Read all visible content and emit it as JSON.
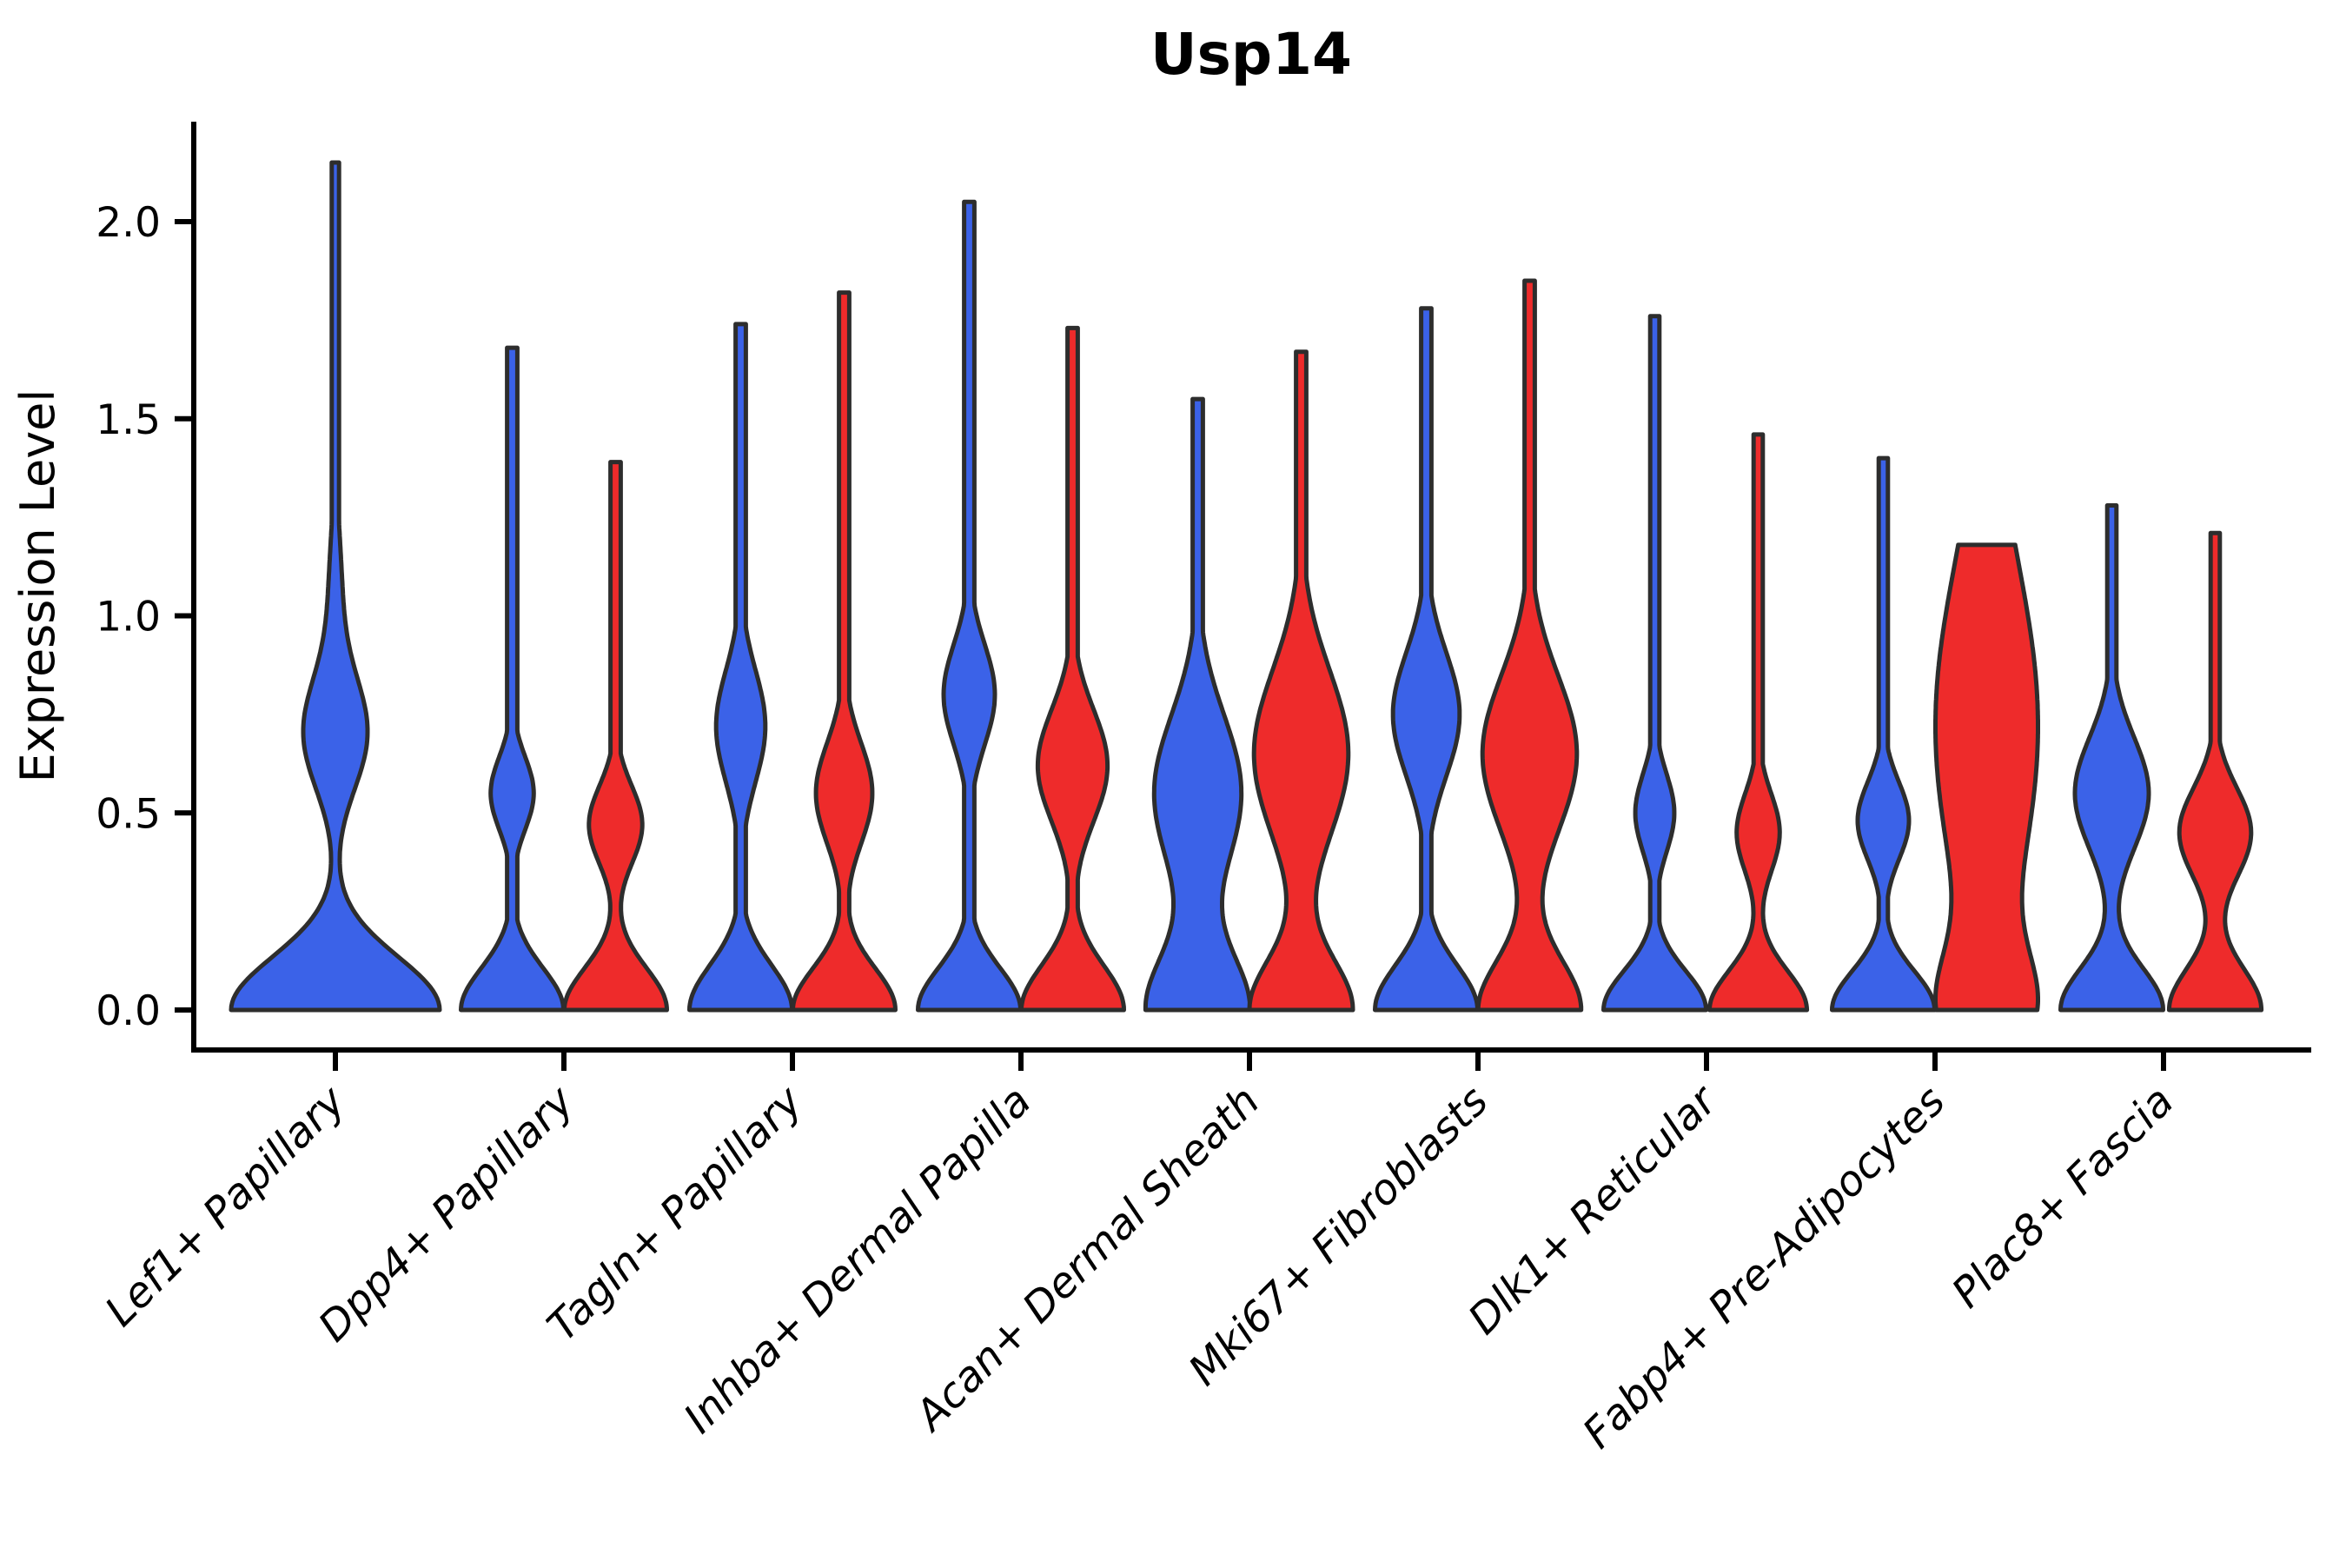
{
  "title": "Usp14",
  "y_axis": {
    "label": "Expression Level",
    "tick_labels": [
      "0.0",
      "0.5",
      "1.0",
      "1.5",
      "2.0"
    ]
  },
  "colors": {
    "blue": "#3B62E8",
    "red": "#EE2B2B",
    "outline": "#2D2D2D",
    "axis": "#000000"
  },
  "chart_data": {
    "type": "violin",
    "title": "Usp14",
    "xlabel": "",
    "ylabel": "Expression Level",
    "yticks": [
      0.0,
      0.5,
      1.0,
      1.5,
      2.0
    ],
    "ylim": [
      0,
      2.25
    ],
    "grid": false,
    "legend": "none",
    "categories": [
      "Lef1+ Papillary",
      "Dpp4+ Papillary",
      "Tagln+ Papillary",
      "Inhba+ Dermal Papilla",
      "Acan+ Dermal Sheath",
      "Mki67+ Fibroblasts",
      "Dlk1+ Reticular",
      "Fabp4+ Pre-Adipocytes",
      "Plac8+ Fascia"
    ],
    "series": [
      {
        "name": "blue",
        "color_key": "blue",
        "max_expression": [
          2.15,
          1.68,
          1.74,
          2.05,
          1.55,
          1.78,
          1.76,
          1.4,
          1.28
        ]
      },
      {
        "name": "red",
        "color_key": "red",
        "max_expression": [
          null,
          1.39,
          1.82,
          1.73,
          1.67,
          1.85,
          1.46,
          1.18,
          1.21
        ]
      }
    ],
    "violins": [
      {
        "category": "Lef1+ Papillary",
        "side": "center",
        "color_key": "blue",
        "max": 2.15,
        "scale": 120,
        "spike": 0.035,
        "bumps": [
          [
            1.0,
            0,
            0.19
          ],
          [
            0.3,
            0.7,
            0.2
          ],
          [
            0.06,
            1.05,
            0.25
          ]
        ]
      },
      {
        "category": "Dpp4+ Papillary",
        "side": "left",
        "color_key": "blue",
        "max": 1.68,
        "scale": 59,
        "spike": 0.1,
        "bumps": [
          [
            1.0,
            0,
            0.15
          ],
          [
            0.42,
            0.55,
            0.13
          ]
        ]
      },
      {
        "category": "Dpp4+ Papillary",
        "side": "right",
        "color_key": "red",
        "max": 1.39,
        "scale": 59,
        "spike": 0.1,
        "bumps": [
          [
            1.0,
            0,
            0.15
          ],
          [
            0.52,
            0.47,
            0.14
          ]
        ]
      },
      {
        "category": "Tagln+ Papillary",
        "side": "left",
        "color_key": "blue",
        "max": 1.74,
        "scale": 59,
        "spike": 0.1,
        "bumps": [
          [
            1.0,
            0,
            0.16
          ],
          [
            0.48,
            0.72,
            0.2
          ]
        ]
      },
      {
        "category": "Tagln+ Papillary",
        "side": "right",
        "color_key": "red",
        "max": 1.82,
        "scale": 59,
        "spike": 0.1,
        "bumps": [
          [
            1.0,
            0,
            0.15
          ],
          [
            0.55,
            0.55,
            0.18
          ]
        ]
      },
      {
        "category": "Inhba+ Dermal Papilla",
        "side": "left",
        "color_key": "blue",
        "max": 2.05,
        "scale": 59,
        "spike": 0.1,
        "bumps": [
          [
            1.0,
            0,
            0.15
          ],
          [
            0.5,
            0.8,
            0.18
          ]
        ]
      },
      {
        "category": "Inhba+ Dermal Papilla",
        "side": "right",
        "color_key": "red",
        "max": 1.73,
        "scale": 59,
        "spike": 0.1,
        "bumps": [
          [
            1.0,
            0,
            0.16
          ],
          [
            0.68,
            0.62,
            0.2
          ]
        ]
      },
      {
        "category": "Acan+ Dermal Sheath",
        "side": "left",
        "color_key": "blue",
        "max": 1.55,
        "scale": 59,
        "spike": 0.1,
        "bumps": [
          [
            1.0,
            0,
            0.2
          ],
          [
            0.85,
            0.55,
            0.28
          ]
        ]
      },
      {
        "category": "Acan+ Dermal Sheath",
        "side": "right",
        "color_key": "red",
        "max": 1.67,
        "scale": 59,
        "spike": 0.1,
        "bumps": [
          [
            1.0,
            0,
            0.18
          ],
          [
            0.92,
            0.65,
            0.3
          ]
        ]
      },
      {
        "category": "Mki67+ Fibroblasts",
        "side": "left",
        "color_key": "blue",
        "max": 1.78,
        "scale": 59,
        "spike": 0.1,
        "bumps": [
          [
            1.0,
            0,
            0.16
          ],
          [
            0.65,
            0.75,
            0.22
          ]
        ]
      },
      {
        "category": "Mki67+ Fibroblasts",
        "side": "right",
        "color_key": "red",
        "max": 1.85,
        "scale": 59,
        "spike": 0.1,
        "bumps": [
          [
            1.0,
            0,
            0.18
          ],
          [
            0.92,
            0.65,
            0.28
          ]
        ]
      },
      {
        "category": "Dlk1+ Reticular",
        "side": "left",
        "color_key": "blue",
        "max": 1.76,
        "scale": 59,
        "spike": 0.09,
        "bumps": [
          [
            1.0,
            0,
            0.14
          ],
          [
            0.38,
            0.5,
            0.14
          ]
        ]
      },
      {
        "category": "Dlk1+ Reticular",
        "side": "right",
        "color_key": "red",
        "max": 1.46,
        "scale": 59,
        "spike": 0.09,
        "bumps": [
          [
            0.95,
            0,
            0.14
          ],
          [
            0.42,
            0.45,
            0.14
          ]
        ]
      },
      {
        "category": "Fabp4+ Pre-Adipocytes",
        "side": "left",
        "color_key": "blue",
        "max": 1.4,
        "scale": 59,
        "spike": 0.09,
        "bumps": [
          [
            1.0,
            0,
            0.14
          ],
          [
            0.5,
            0.48,
            0.14
          ]
        ]
      },
      {
        "category": "Fabp4+ Pre-Adipocytes",
        "side": "right",
        "color_key": "red",
        "max": 1.18,
        "scale": 59,
        "spike": 0.09,
        "bumps": [
          [
            0.75,
            0,
            0.2
          ],
          [
            1.0,
            0.72,
            0.6
          ]
        ]
      },
      {
        "category": "Plac8+ Fascia",
        "side": "left",
        "color_key": "blue",
        "max": 1.28,
        "scale": 59,
        "spike": 0.09,
        "bumps": [
          [
            1.0,
            0,
            0.15
          ],
          [
            0.72,
            0.55,
            0.2
          ]
        ]
      },
      {
        "category": "Plac8+ Fascia",
        "side": "right",
        "color_key": "red",
        "max": 1.21,
        "scale": 59,
        "spike": 0.09,
        "bumps": [
          [
            0.9,
            0,
            0.15
          ],
          [
            0.7,
            0.45,
            0.16
          ]
        ]
      }
    ]
  }
}
